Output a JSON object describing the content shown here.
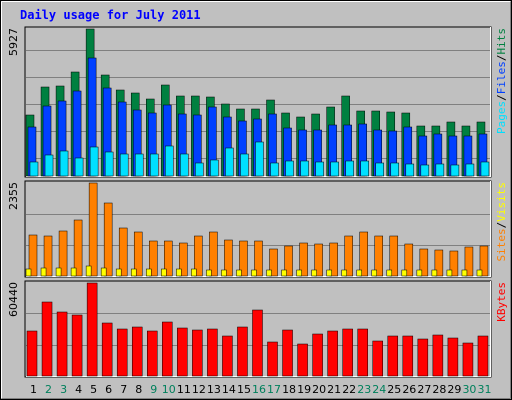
{
  "title": "Daily usage for July 2011",
  "colors": {
    "hits": "#008040",
    "files": "#0040ff",
    "pages": "#00e0ff",
    "visits": "#ffff00",
    "sites": "#ff8000",
    "kbytes": "#ff0000",
    "weekday_label": "#000000",
    "weekend_label": "#00805c",
    "title": "#0000ff"
  },
  "chart_data": [
    {
      "type": "bar",
      "panel": "hits-files-pages",
      "categories": [
        "1",
        "2",
        "3",
        "4",
        "5",
        "6",
        "7",
        "8",
        "9",
        "10",
        "11",
        "12",
        "13",
        "14",
        "15",
        "16",
        "17",
        "18",
        "19",
        "20",
        "21",
        "22",
        "23",
        "24",
        "25",
        "26",
        "27",
        "28",
        "29",
        "30",
        "31"
      ],
      "weekend_days": [
        "2",
        "3",
        "9",
        "10",
        "16",
        "17",
        "23",
        "24",
        "30",
        "31"
      ],
      "ymax_label": "5927",
      "ylim": [
        0,
        5927
      ],
      "grid": true,
      "right_labels": [
        "Pages",
        "/",
        "Files",
        "/",
        "Hits"
      ],
      "series": [
        {
          "name": "Hits",
          "color_key": "hits",
          "values": [
            2450,
            3580,
            3640,
            4190,
            5927,
            4080,
            3460,
            3350,
            3090,
            3660,
            3240,
            3240,
            3200,
            2890,
            2690,
            2720,
            3050,
            2520,
            2360,
            2500,
            2790,
            3210,
            2610,
            2610,
            2580,
            2540,
            2020,
            2030,
            2190,
            2000,
            2160
          ]
        },
        {
          "name": "Files",
          "color_key": "files",
          "values": [
            1960,
            2830,
            3010,
            3410,
            4750,
            3540,
            2980,
            2670,
            2520,
            2860,
            2510,
            2470,
            2790,
            2370,
            2210,
            2310,
            2480,
            1940,
            1870,
            1840,
            2050,
            2060,
            2090,
            1870,
            1800,
            1990,
            1620,
            1690,
            1620,
            1600,
            1710
          ]
        },
        {
          "name": "Pages",
          "color_key": "pages",
          "values": [
            560,
            860,
            1000,
            720,
            1150,
            950,
            880,
            880,
            880,
            1190,
            880,
            540,
            650,
            1110,
            880,
            1360,
            540,
            610,
            600,
            580,
            570,
            620,
            590,
            530,
            510,
            500,
            450,
            470,
            440,
            480,
            570
          ]
        }
      ]
    },
    {
      "type": "bar",
      "panel": "visits-sites",
      "categories": [
        "1",
        "2",
        "3",
        "4",
        "5",
        "6",
        "7",
        "8",
        "9",
        "10",
        "11",
        "12",
        "13",
        "14",
        "15",
        "16",
        "17",
        "18",
        "19",
        "20",
        "21",
        "22",
        "23",
        "24",
        "25",
        "26",
        "27",
        "28",
        "29",
        "30",
        "31"
      ],
      "ymax_label": "2355",
      "ylim": [
        0,
        2355
      ],
      "grid": true,
      "right_labels": [
        "Sites",
        "/",
        "Visits"
      ],
      "series": [
        {
          "name": "Sites",
          "color_key": "sites",
          "values": [
            1030,
            1010,
            1150,
            1410,
            2355,
            1860,
            1210,
            1110,
            880,
            880,
            830,
            1010,
            1110,
            920,
            880,
            880,
            680,
            760,
            830,
            800,
            830,
            1010,
            1110,
            1010,
            1010,
            810,
            690,
            650,
            640,
            740,
            760
          ]
        },
        {
          "name": "Visits",
          "color_key": "visits",
          "values": [
            180,
            200,
            200,
            200,
            250,
            200,
            180,
            180,
            180,
            180,
            180,
            180,
            160,
            160,
            160,
            160,
            160,
            160,
            160,
            160,
            160,
            160,
            160,
            160,
            160,
            160,
            160,
            160,
            160,
            160,
            160
          ]
        }
      ]
    },
    {
      "type": "bar",
      "panel": "kbytes",
      "categories": [
        "1",
        "2",
        "3",
        "4",
        "5",
        "6",
        "7",
        "8",
        "9",
        "10",
        "11",
        "12",
        "13",
        "14",
        "15",
        "16",
        "17",
        "18",
        "19",
        "20",
        "21",
        "22",
        "23",
        "24",
        "25",
        "26",
        "27",
        "28",
        "29",
        "30",
        "31"
      ],
      "ymax_label": "60440",
      "ylim": [
        0,
        60440
      ],
      "grid": true,
      "right_labels": [
        "KBytes"
      ],
      "series": [
        {
          "name": "KBytes",
          "color_key": "kbytes",
          "values": [
            29000,
            47800,
            41700,
            39900,
            60440,
            34600,
            30400,
            31800,
            29300,
            35300,
            31000,
            29900,
            30700,
            26200,
            31800,
            42800,
            21900,
            30200,
            21100,
            27300,
            29000,
            30800,
            30800,
            22500,
            25700,
            25900,
            23900,
            26700,
            24400,
            21500,
            26200
          ]
        }
      ]
    }
  ]
}
